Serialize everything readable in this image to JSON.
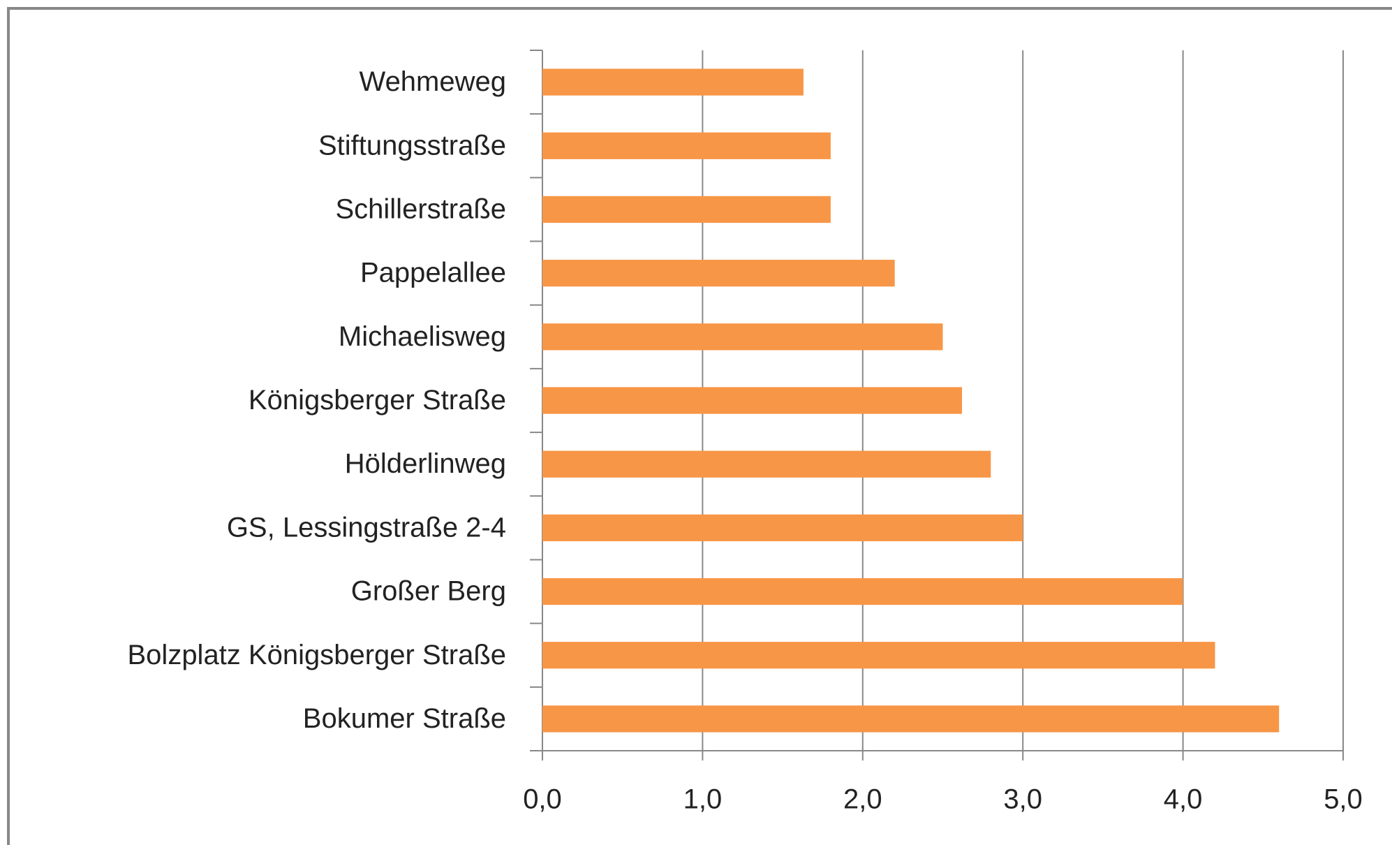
{
  "chart_data": {
    "type": "bar",
    "orientation": "horizontal",
    "categories": [
      "Wehmeweg",
      "Stiftungsstraße",
      "Schillerstraße",
      "Pappelallee",
      "Michaelisweg",
      "Königsberger Straße",
      "Hölderlinweg",
      "GS, Lessingstraße 2-4",
      "Großer Berg",
      "Bolzplatz Königsberger Straße",
      "Bokumer Straße"
    ],
    "values": [
      1.63,
      1.8,
      1.8,
      2.2,
      2.5,
      2.62,
      2.8,
      3.0,
      4.0,
      4.2,
      4.6
    ],
    "color": "#f79646",
    "xlim": [
      0,
      5
    ],
    "xticks": [
      {
        "value": 0,
        "label": "0,0"
      },
      {
        "value": 1,
        "label": "1,0"
      },
      {
        "value": 2,
        "label": "2,0"
      },
      {
        "value": 3,
        "label": "3,0"
      },
      {
        "value": 4,
        "label": "4,0"
      },
      {
        "value": 5,
        "label": "5,0"
      }
    ],
    "grid": true
  }
}
